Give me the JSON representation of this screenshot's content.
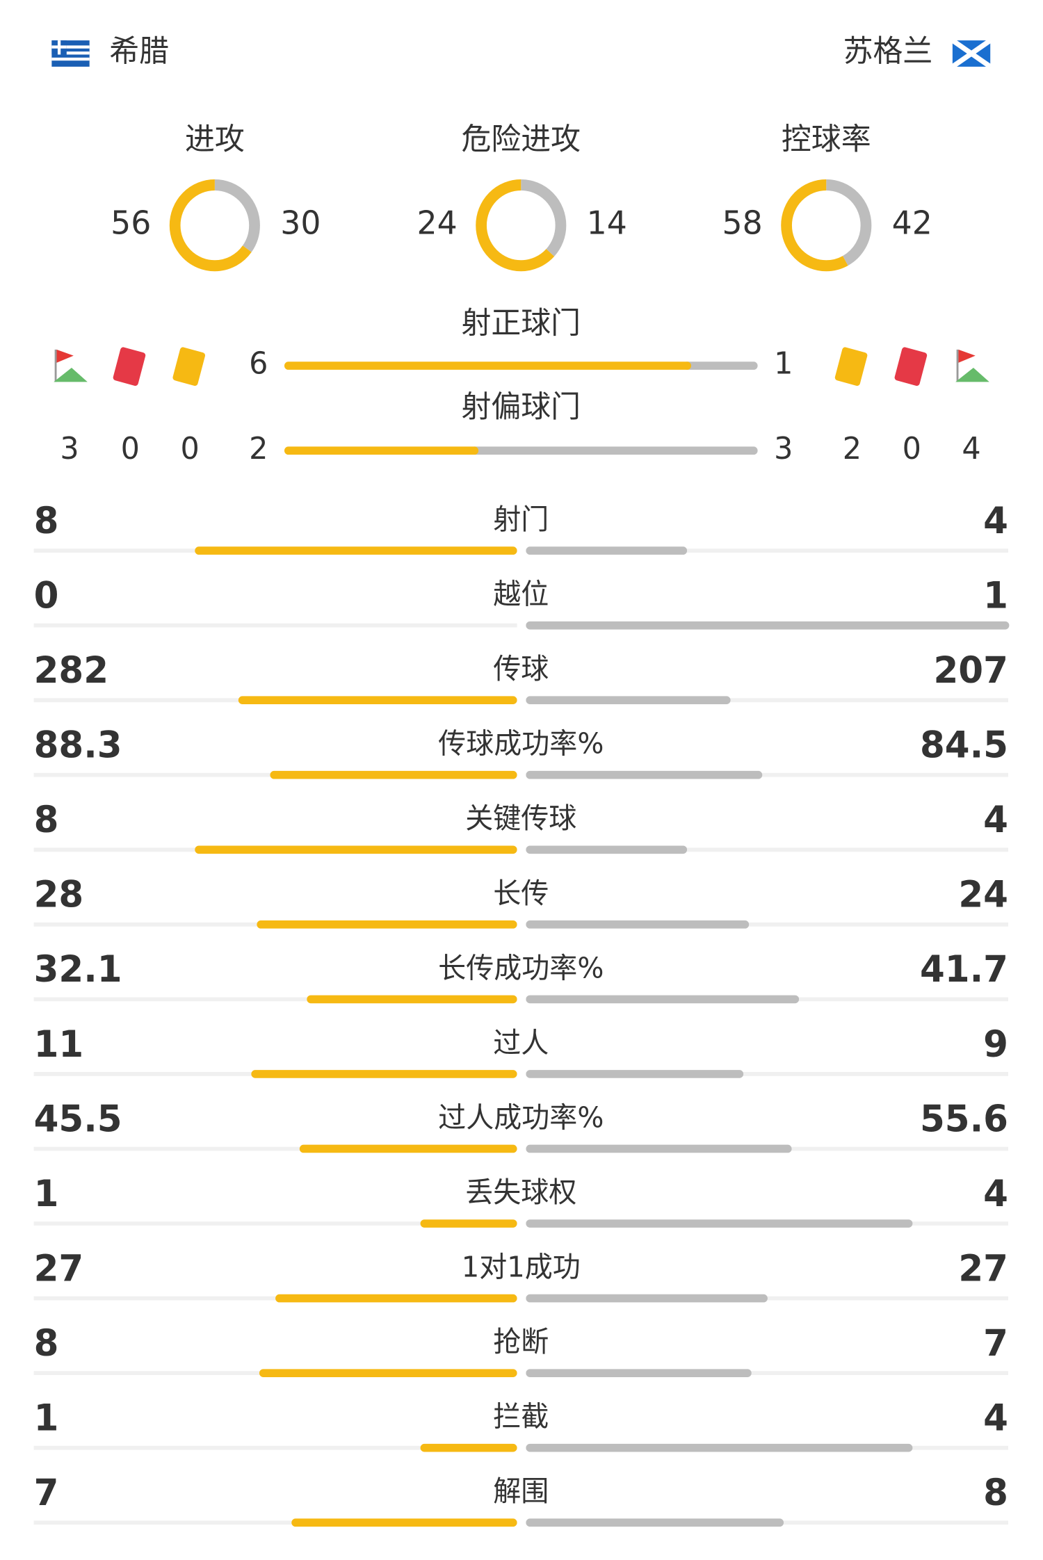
{
  "home": {
    "name": "希腊",
    "corners": 3,
    "red_cards": 0,
    "yellow_cards": 0
  },
  "away": {
    "name": "苏格兰",
    "corners": 4,
    "red_cards": 0,
    "yellow_cards": 2
  },
  "donuts": [
    {
      "label": "进攻",
      "home": 56,
      "away": 30
    },
    {
      "label": "危险进攻",
      "home": 24,
      "away": 14
    },
    {
      "label": "控球率",
      "home": 58,
      "away": 42
    }
  ],
  "shot_bars": [
    {
      "label": "射正球门",
      "home": 6,
      "away": 1
    },
    {
      "label": "射偏球门",
      "home": 2,
      "away": 3
    }
  ],
  "stats": [
    {
      "label": "射门",
      "home": 8,
      "away": 4
    },
    {
      "label": "越位",
      "home": 0,
      "away": 1
    },
    {
      "label": "传球",
      "home": 282,
      "away": 207
    },
    {
      "label": "传球成功率%",
      "home": 88.3,
      "away": 84.5
    },
    {
      "label": "关键传球",
      "home": 8,
      "away": 4
    },
    {
      "label": "长传",
      "home": 28,
      "away": 24
    },
    {
      "label": "长传成功率%",
      "home": 32.1,
      "away": 41.7
    },
    {
      "label": "过人",
      "home": 11,
      "away": 9
    },
    {
      "label": "过人成功率%",
      "home": 45.5,
      "away": 55.6
    },
    {
      "label": "丢失球权",
      "home": 1,
      "away": 4
    },
    {
      "label": "1对1成功",
      "home": 27,
      "away": 27
    },
    {
      "label": "抢断",
      "home": 8,
      "away": 7
    },
    {
      "label": "拦截",
      "home": 1,
      "away": 4
    },
    {
      "label": "解围",
      "home": 7,
      "away": 8
    }
  ]
}
